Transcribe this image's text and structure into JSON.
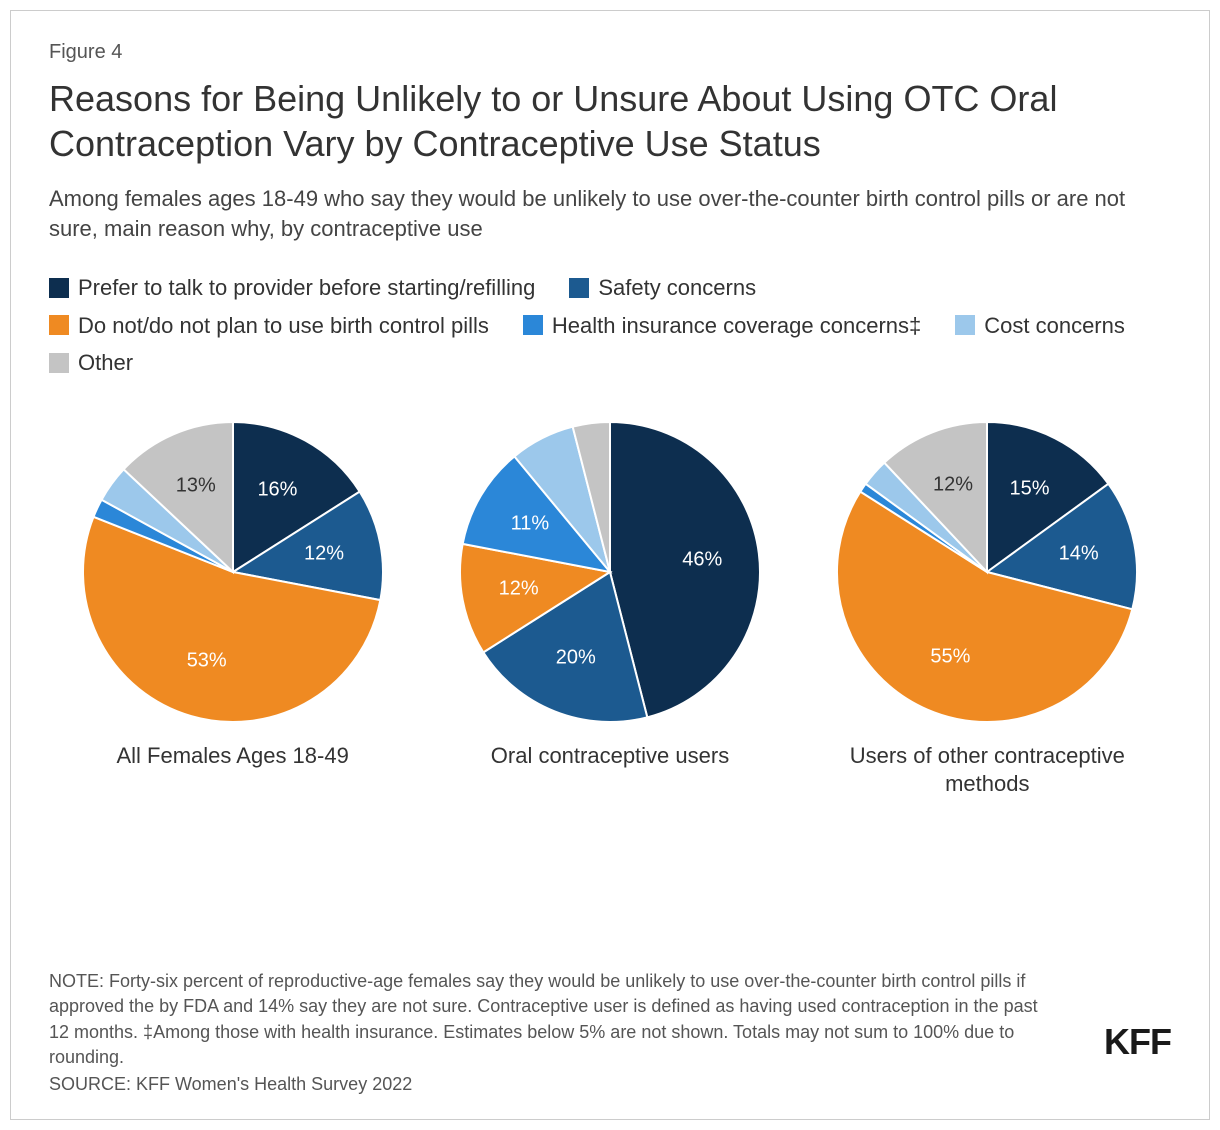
{
  "figure_label": "Figure 4",
  "title": "Reasons for Being Unlikely to or Unsure About Using OTC Oral Contraception Vary by Contraceptive Use Status",
  "subtitle": "Among females ages 18-49 who say they would be unlikely to use over-the-counter birth control pills or are not sure, main reason why, by contraceptive use",
  "legend": [
    {
      "label": "Prefer to talk to provider before starting/refilling",
      "color": "#0d2e4f"
    },
    {
      "label": "Safety concerns",
      "color": "#1c5a90"
    },
    {
      "label": "Do not/do not plan to use birth control pills",
      "color": "#ef8a22"
    },
    {
      "label": "Health insurance coverage concerns‡",
      "color": "#2b87d8"
    },
    {
      "label": "Cost concerns",
      "color": "#9cc8eb"
    },
    {
      "label": "Other",
      "color": "#c4c4c4"
    }
  ],
  "charts": [
    {
      "caption": "All Females Ages 18-49",
      "slices": [
        {
          "value": 16,
          "color": "#0d2e4f",
          "label": "16%"
        },
        {
          "value": 12,
          "color": "#1c5a90",
          "label": "12%"
        },
        {
          "value": 53,
          "color": "#ef8a22",
          "label": "53%"
        },
        {
          "value": 2,
          "color": "#2b87d8",
          "label": ""
        },
        {
          "value": 4,
          "color": "#9cc8eb",
          "label": ""
        },
        {
          "value": 13,
          "color": "#c4c4c4",
          "label": "13%"
        }
      ]
    },
    {
      "caption": "Oral contraceptive users",
      "slices": [
        {
          "value": 46,
          "color": "#0d2e4f",
          "label": "46%"
        },
        {
          "value": 20,
          "color": "#1c5a90",
          "label": "20%"
        },
        {
          "value": 12,
          "color": "#ef8a22",
          "label": "12%"
        },
        {
          "value": 11,
          "color": "#2b87d8",
          "label": "11%"
        },
        {
          "value": 7,
          "color": "#9cc8eb",
          "label": ""
        },
        {
          "value": 4,
          "color": "#c4c4c4",
          "label": ""
        }
      ]
    },
    {
      "caption": "Users of other contraceptive methods",
      "slices": [
        {
          "value": 15,
          "color": "#0d2e4f",
          "label": "15%"
        },
        {
          "value": 14,
          "color": "#1c5a90",
          "label": "14%"
        },
        {
          "value": 55,
          "color": "#ef8a22",
          "label": "55%"
        },
        {
          "value": 1,
          "color": "#2b87d8",
          "label": ""
        },
        {
          "value": 3,
          "color": "#9cc8eb",
          "label": ""
        },
        {
          "value": 12,
          "color": "#c4c4c4",
          "label": "12%"
        }
      ]
    }
  ],
  "note": "NOTE: Forty-six percent of reproductive-age females say they would be unlikely to use over-the-counter birth control pills if approved the by FDA and 14% say they are not sure. Contraceptive user is defined as having used contraception in the past 12 months. ‡Among those with health insurance. Estimates below 5% are not shown. Totals may not sum to 100% due to rounding.",
  "source": "SOURCE: KFF Women's Health Survey 2022",
  "logo": "KFF",
  "pie_radius": 150,
  "label_radius_factor": 0.62,
  "background_color": "#ffffff"
}
